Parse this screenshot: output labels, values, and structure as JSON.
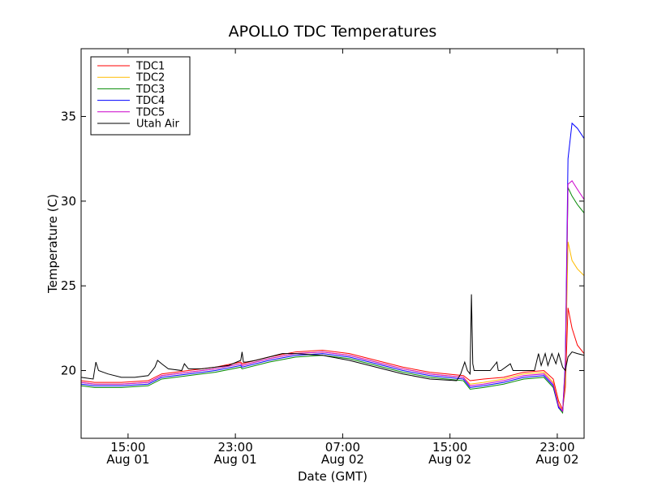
{
  "chart_data": {
    "type": "line",
    "title": "APOLLO TDC Temperatures",
    "xlabel": "Date (GMT)",
    "ylabel": "Temperature (C)",
    "x_unit": "hours since Aug 01 10:30 GMT",
    "xlim": [
      0,
      37.5
    ],
    "ylim": [
      16,
      39
    ],
    "yticks": [
      20,
      25,
      30,
      35
    ],
    "xticks": [
      {
        "x": 3.5,
        "line1": "15:00",
        "line2": "Aug 01"
      },
      {
        "x": 11.5,
        "line1": "23:00",
        "line2": "Aug 01"
      },
      {
        "x": 19.5,
        "line1": "07:00",
        "line2": "Aug 02"
      },
      {
        "x": 27.5,
        "line1": "15:00",
        "line2": "Aug 02"
      },
      {
        "x": 35.5,
        "line1": "23:00",
        "line2": "Aug 02"
      }
    ],
    "legend_position": "top-left",
    "series": [
      {
        "name": "TDC1",
        "color": "#ff0000",
        "x": [
          0,
          1,
          3,
          5,
          6,
          8,
          10,
          11.9,
          12,
          14,
          16,
          18,
          20,
          22,
          24,
          26,
          28.5,
          29,
          30,
          31.5,
          33,
          34.5,
          35.2,
          35.6,
          35.9,
          36.1,
          36.3,
          36.6,
          37,
          37.5
        ],
        "y": [
          19.4,
          19.3,
          19.3,
          19.4,
          19.8,
          20.0,
          20.2,
          20.5,
          20.4,
          20.8,
          21.1,
          21.2,
          21.0,
          20.6,
          20.2,
          19.9,
          19.7,
          19.4,
          19.5,
          19.6,
          19.9,
          20.0,
          19.5,
          18.2,
          17.7,
          19.0,
          23.7,
          22.5,
          21.5,
          21.0
        ]
      },
      {
        "name": "TDC2",
        "color": "#ffbb00",
        "x": [
          0,
          1,
          3,
          5,
          6,
          8,
          10,
          11.9,
          12,
          14,
          16,
          18,
          20,
          22,
          24,
          26,
          28.5,
          29,
          30,
          31.5,
          33,
          34.5,
          35.2,
          35.6,
          35.9,
          36.1,
          36.3,
          36.6,
          37,
          37.5
        ],
        "y": [
          19.3,
          19.2,
          19.2,
          19.3,
          19.7,
          19.9,
          20.1,
          20.4,
          20.3,
          20.7,
          21.0,
          21.1,
          20.9,
          20.5,
          20.1,
          19.8,
          19.6,
          19.2,
          19.3,
          19.5,
          19.8,
          19.9,
          19.3,
          18.0,
          17.6,
          19.5,
          27.6,
          26.5,
          26.0,
          25.6
        ]
      },
      {
        "name": "TDC3",
        "color": "#008800",
        "x": [
          0,
          1,
          3,
          5,
          6,
          8,
          10,
          11.9,
          12,
          14,
          16,
          18,
          20,
          22,
          24,
          26,
          28.5,
          29,
          30,
          31.5,
          33,
          34.5,
          35.2,
          35.6,
          35.9,
          36.1,
          36.3,
          36.6,
          37,
          37.5
        ],
        "y": [
          19.1,
          19.0,
          19.0,
          19.1,
          19.5,
          19.7,
          19.9,
          20.2,
          20.1,
          20.5,
          20.8,
          20.9,
          20.7,
          20.3,
          19.9,
          19.6,
          19.4,
          18.9,
          19.0,
          19.2,
          19.5,
          19.6,
          19.0,
          17.8,
          17.5,
          20.0,
          30.8,
          30.3,
          29.8,
          29.3
        ]
      },
      {
        "name": "TDC4",
        "color": "#0000ff",
        "x": [
          0,
          1,
          3,
          5,
          6,
          8,
          10,
          11.9,
          12,
          14,
          16,
          18,
          20,
          22,
          24,
          26,
          28.5,
          29,
          30,
          31.5,
          33,
          34.5,
          35.2,
          35.6,
          35.9,
          36.1,
          36.3,
          36.6,
          37,
          37.5
        ],
        "y": [
          19.2,
          19.1,
          19.1,
          19.2,
          19.6,
          19.8,
          20.0,
          20.3,
          20.2,
          20.6,
          20.9,
          21.0,
          20.8,
          20.4,
          20.0,
          19.7,
          19.5,
          19.0,
          19.1,
          19.3,
          19.6,
          19.7,
          19.1,
          17.8,
          17.6,
          20.5,
          32.5,
          34.6,
          34.3,
          33.7
        ]
      },
      {
        "name": "TDC5",
        "color": "#cc00cc",
        "x": [
          0,
          1,
          3,
          5,
          6,
          8,
          10,
          11.9,
          12,
          14,
          16,
          18,
          20,
          22,
          24,
          26,
          28.5,
          29,
          30,
          31.5,
          33,
          34.5,
          35.2,
          35.6,
          35.9,
          36.1,
          36.3,
          36.6,
          37,
          37.5
        ],
        "y": [
          19.3,
          19.2,
          19.2,
          19.3,
          19.7,
          19.9,
          20.1,
          20.4,
          20.3,
          20.7,
          21.0,
          21.1,
          20.9,
          20.5,
          20.1,
          19.8,
          19.6,
          19.1,
          19.2,
          19.4,
          19.7,
          19.8,
          19.2,
          17.9,
          17.6,
          20.3,
          31.0,
          31.2,
          30.7,
          30.1
        ]
      },
      {
        "name": "Utah Air",
        "color": "#000000",
        "x": [
          0,
          0.9,
          1.1,
          1.3,
          2,
          3,
          4,
          5,
          5.5,
          5.7,
          6,
          6.5,
          7.5,
          7.7,
          8,
          9,
          10,
          11,
          11.9,
          12,
          12.1,
          12.3,
          13,
          14,
          15,
          16,
          18,
          20,
          22,
          24,
          26,
          28,
          28.3,
          28.6,
          28.8,
          29.0,
          29.1,
          29.2,
          29.3,
          29.5,
          30,
          30.5,
          31,
          31.1,
          31.3,
          32,
          32.2,
          32.5,
          33,
          33.4,
          33.8,
          34.1,
          34.3,
          34.6,
          34.8,
          35.1,
          35.4,
          35.6,
          35.9,
          36.1,
          36.3,
          36.6,
          37,
          37.5
        ],
        "y": [
          19.6,
          19.5,
          20.5,
          20.0,
          19.8,
          19.6,
          19.6,
          19.7,
          20.2,
          20.6,
          20.4,
          20.1,
          20.0,
          20.4,
          20.1,
          20.1,
          20.2,
          20.3,
          20.6,
          21.1,
          20.5,
          20.5,
          20.6,
          20.8,
          21.0,
          21.0,
          20.9,
          20.6,
          20.2,
          19.8,
          19.5,
          19.4,
          19.8,
          20.5,
          20.0,
          19.8,
          24.5,
          20.4,
          20.0,
          20.0,
          20.0,
          20.0,
          20.5,
          20.0,
          20.0,
          20.4,
          20.0,
          20.0,
          20.0,
          20.0,
          20.0,
          21.0,
          20.3,
          21.0,
          20.3,
          21.0,
          20.4,
          21.0,
          20.2,
          20.0,
          20.8,
          21.1,
          21.0,
          20.9
        ]
      }
    ]
  }
}
